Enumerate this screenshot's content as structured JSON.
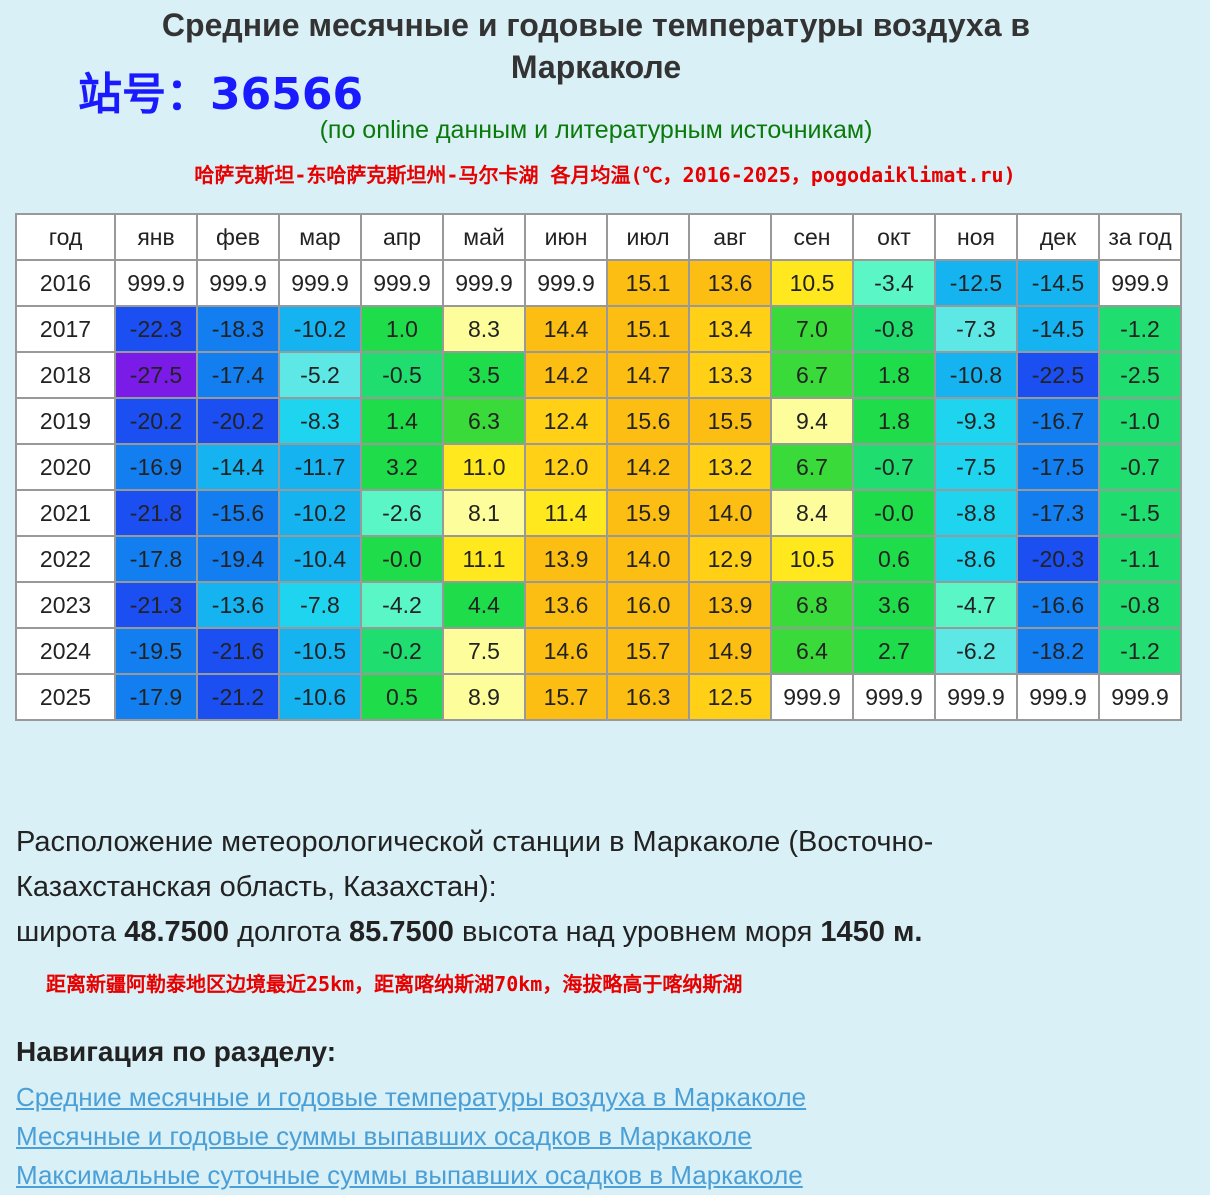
{
  "header": {
    "title_line1": "Средние месячные и годовые температуры воздуха в",
    "title_line2": "Маркаколе",
    "station_label": "站号：36566",
    "subtitle": "(по online данным и литературным источникам)",
    "annotation": "哈萨克斯坦-东哈萨克斯坦州-马尔卡湖 各月均温(℃，2016-2025，pogodaiklimat.ru)"
  },
  "table": {
    "headers": [
      "год",
      "янв",
      "фев",
      "мар",
      "апр",
      "май",
      "июн",
      "июл",
      "авг",
      "сен",
      "окт",
      "ноя",
      "дек",
      "за год"
    ],
    "rows": [
      {
        "year": "2016",
        "values": [
          "999.9",
          "999.9",
          "999.9",
          "999.9",
          "999.9",
          "999.9",
          "15.1",
          "13.6",
          "10.5",
          "-3.4",
          "-12.5",
          "-14.5",
          "999.9"
        ]
      },
      {
        "year": "2017",
        "values": [
          "-22.3",
          "-18.3",
          "-10.2",
          "1.0",
          "8.3",
          "14.4",
          "15.1",
          "13.4",
          "7.0",
          "-0.8",
          "-7.3",
          "-14.5",
          "-1.2"
        ]
      },
      {
        "year": "2018",
        "values": [
          "-27.5",
          "-17.4",
          "-5.2",
          "-0.5",
          "3.5",
          "14.2",
          "14.7",
          "13.3",
          "6.7",
          "1.8",
          "-10.8",
          "-22.5",
          "-2.5"
        ]
      },
      {
        "year": "2019",
        "values": [
          "-20.2",
          "-20.2",
          "-8.3",
          "1.4",
          "6.3",
          "12.4",
          "15.6",
          "15.5",
          "9.4",
          "1.8",
          "-9.3",
          "-16.7",
          "-1.0"
        ]
      },
      {
        "year": "2020",
        "values": [
          "-16.9",
          "-14.4",
          "-11.7",
          "3.2",
          "11.0",
          "12.0",
          "14.2",
          "13.2",
          "6.7",
          "-0.7",
          "-7.5",
          "-17.5",
          "-0.7"
        ]
      },
      {
        "year": "2021",
        "values": [
          "-21.8",
          "-15.6",
          "-10.2",
          "-2.6",
          "8.1",
          "11.4",
          "15.9",
          "14.0",
          "8.4",
          "-0.0",
          "-8.8",
          "-17.3",
          "-1.5"
        ]
      },
      {
        "year": "2022",
        "values": [
          "-17.8",
          "-19.4",
          "-10.4",
          "-0.0",
          "11.1",
          "13.9",
          "14.0",
          "12.9",
          "10.5",
          "0.6",
          "-8.6",
          "-20.3",
          "-1.1"
        ]
      },
      {
        "year": "2023",
        "values": [
          "-21.3",
          "-13.6",
          "-7.8",
          "-4.2",
          "4.4",
          "13.6",
          "16.0",
          "13.9",
          "6.8",
          "3.6",
          "-4.7",
          "-16.6",
          "-0.8"
        ]
      },
      {
        "year": "2024",
        "values": [
          "-19.5",
          "-21.6",
          "-10.5",
          "-0.2",
          "7.5",
          "14.6",
          "15.7",
          "14.9",
          "6.4",
          "2.7",
          "-6.2",
          "-18.2",
          "-1.2"
        ]
      },
      {
        "year": "2025",
        "values": [
          "-17.9",
          "-21.2",
          "-10.6",
          "0.5",
          "8.9",
          "15.7",
          "16.3",
          "12.5",
          "999.9",
          "999.9",
          "999.9",
          "999.9",
          "999.9"
        ]
      }
    ],
    "missing_value": "999.9"
  },
  "location": {
    "line1": "Расположение метеорологической станции в Маркаколе (Восточно-",
    "line2": "Казахстанская область, Казахстан):",
    "lat_label": "широта",
    "lat": "48.7500",
    "lon_label": "долгота",
    "lon": "85.7500",
    "alt_label": "высота над уровнем моря",
    "alt": "1450 м."
  },
  "note": "距离新疆阿勒泰地区边境最近25km，距离喀纳斯湖70km，海拔略高于喀纳斯湖",
  "navigation": {
    "heading": "Навигация по разделу:",
    "links": [
      "Средние месячные и годовые температуры воздуха в Маркаколе",
      "Месячные и годовые суммы выпавших осадков в Маркаколе",
      "Максимальные суточные суммы выпавших осадков в Маркаколе"
    ]
  },
  "colors": {
    "background": "#d9f0f7",
    "station": "#1a1aff",
    "subtitle": "#0b7a0b",
    "annotation": "#e60000",
    "link": "#4a9fd6"
  }
}
